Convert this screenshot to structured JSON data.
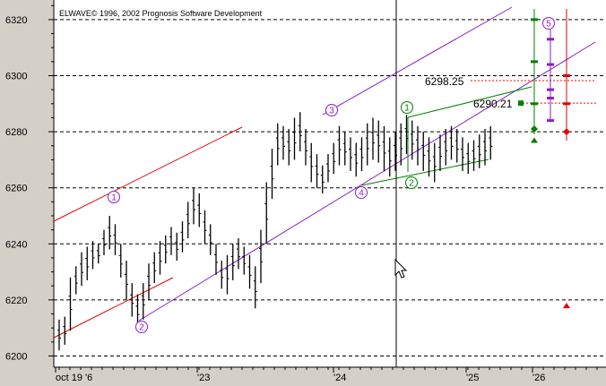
{
  "app": {
    "copyright": "ELWAVE© 1996, 2002 Prognosis Software Development"
  },
  "colors": {
    "background": "#ffffff",
    "axis_panel": "#d4d0c8",
    "bars": "#000000",
    "channel_red": "#e00000",
    "channel_purple": "#8a1fc9",
    "triangle_green": "#008000",
    "target_dotted_red": "#ff0000",
    "cursor_line": "#000000"
  },
  "chart_data": {
    "type": "bar",
    "ylim": [
      6196,
      6327
    ],
    "y_ticks": [
      6200,
      6220,
      6240,
      6260,
      6280,
      6300,
      6320
    ],
    "x_ticks": [
      "oct 19 '6",
      "'23",
      "'24",
      "'25",
      "'26"
    ],
    "grid": "horizontal dashed",
    "price_labels": [
      "6298.25",
      "6290.21"
    ],
    "price_levels": [
      6298.25,
      6290.21
    ],
    "wave_labels": [
      {
        "text": "1",
        "color": "purple",
        "bar_index": 9,
        "price": 6255
      },
      {
        "text": "2",
        "color": "purple",
        "bar_index": 13,
        "price": 6206
      },
      {
        "text": "3",
        "color": "purple",
        "bar_index": 43,
        "price": 6287
      },
      {
        "text": "4",
        "color": "purple",
        "bar_index": 47,
        "price": 6263
      },
      {
        "text": "1",
        "color": "green",
        "bar_index": 56,
        "price": 6288
      },
      {
        "text": "2",
        "color": "green",
        "bar_index": 63,
        "price": 6264
      },
      {
        "text": "5",
        "color": "purple",
        "bar_index": 83,
        "price": 6326
      }
    ],
    "bars_seed_description": "OHLC price bars",
    "bars": [
      [
        6213,
        6202
      ],
      [
        6214,
        6204
      ],
      [
        6228,
        6209
      ],
      [
        6232,
        6222
      ],
      [
        6237,
        6225
      ],
      [
        6239,
        6227
      ],
      [
        6241,
        6231
      ],
      [
        6240,
        6233
      ],
      [
        6245,
        6236
      ],
      [
        6250,
        6238
      ],
      [
        6247,
        6236
      ],
      [
        6240,
        6228
      ],
      [
        6234,
        6220
      ],
      [
        6226,
        6214
      ],
      [
        6222,
        6210
      ],
      [
        6226,
        6213
      ],
      [
        6233,
        6220
      ],
      [
        6237,
        6226
      ],
      [
        6241,
        6229
      ],
      [
        6243,
        6233
      ],
      [
        6246,
        6236
      ],
      [
        6244,
        6234
      ],
      [
        6248,
        6237
      ],
      [
        6255,
        6242
      ],
      [
        6260,
        6247
      ],
      [
        6258,
        6246
      ],
      [
        6252,
        6240
      ],
      [
        6247,
        6236
      ],
      [
        6240,
        6229
      ],
      [
        6234,
        6224
      ],
      [
        6236,
        6222
      ],
      [
        6240,
        6227
      ],
      [
        6242,
        6231
      ],
      [
        6239,
        6229
      ],
      [
        6236,
        6224
      ],
      [
        6232,
        6217
      ],
      [
        6245,
        6226
      ],
      [
        6262,
        6240
      ],
      [
        6274,
        6256
      ],
      [
        6283,
        6268
      ],
      [
        6282,
        6270
      ],
      [
        6281,
        6268
      ],
      [
        6285,
        6270
      ],
      [
        6287,
        6273
      ],
      [
        6281,
        6268
      ],
      [
        6276,
        6262
      ],
      [
        6272,
        6260
      ],
      [
        6268,
        6258
      ],
      [
        6272,
        6262
      ],
      [
        6276,
        6265
      ],
      [
        6282,
        6268
      ],
      [
        6280,
        6268
      ],
      [
        6278,
        6266
      ],
      [
        6276,
        6264
      ],
      [
        6278,
        6266
      ],
      [
        6283,
        6268
      ],
      [
        6285,
        6270
      ],
      [
        6284,
        6269
      ],
      [
        6282,
        6266
      ],
      [
        6278,
        6264
      ],
      [
        6280,
        6266
      ],
      [
        6283,
        6268
      ],
      [
        6286,
        6272
      ],
      [
        6284,
        6270
      ],
      [
        6282,
        6268
      ],
      [
        6280,
        6266
      ],
      [
        6278,
        6264
      ],
      [
        6276,
        6262
      ],
      [
        6279,
        6266
      ],
      [
        6281,
        6268
      ],
      [
        6282,
        6270
      ],
      [
        6281,
        6269
      ],
      [
        6278,
        6266
      ],
      [
        6276,
        6265
      ],
      [
        6277,
        6266
      ],
      [
        6279,
        6267
      ],
      [
        6281,
        6268
      ],
      [
        6282,
        6270
      ]
    ],
    "projection_marks": [
      {
        "color": "green",
        "col": 0,
        "type": "tick",
        "price": 6320
      },
      {
        "color": "green",
        "col": 0,
        "type": "tick",
        "price": 6305
      },
      {
        "color": "green",
        "col": 0,
        "type": "tick",
        "price": 6290
      },
      {
        "color": "green",
        "col": 0,
        "type": "diamond",
        "price": 6281
      },
      {
        "color": "green",
        "col": 0,
        "type": "triangle-up",
        "price": 6277
      },
      {
        "color": "purple",
        "col": 1,
        "type": "tick",
        "price": 6313
      },
      {
        "color": "purple",
        "col": 1,
        "type": "tick",
        "price": 6304
      },
      {
        "color": "purple",
        "col": 1,
        "type": "tick",
        "price": 6295
      },
      {
        "color": "purple",
        "col": 1,
        "type": "tick",
        "price": 6292
      },
      {
        "color": "purple",
        "col": 1,
        "type": "tick",
        "price": 6284
      },
      {
        "color": "red",
        "col": 2,
        "type": "tick",
        "price": 6300
      },
      {
        "color": "red",
        "col": 2,
        "type": "tick",
        "price": 6290
      },
      {
        "color": "red",
        "col": 2,
        "type": "diamond",
        "price": 6280
      },
      {
        "color": "red",
        "col": 2,
        "type": "triangle-up",
        "price": 6218
      }
    ]
  }
}
